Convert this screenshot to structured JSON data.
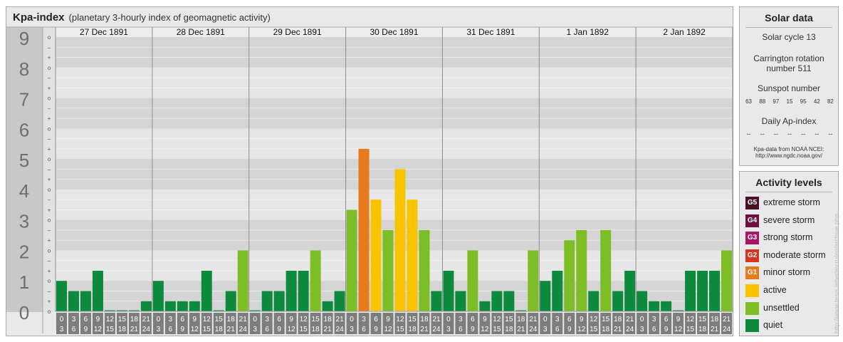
{
  "header": {
    "title": "Kpa-index",
    "subtitle": "(planetary 3-hourly index of geomagnetic activity)"
  },
  "chart_data": {
    "type": "bar",
    "title": "Kpa-index",
    "subtitle": "(planetary 3-hourly index of geomagnetic activity)",
    "ylim": [
      0,
      9
    ],
    "y_ticks": [
      "0",
      "1",
      "2",
      "3",
      "4",
      "5",
      "6",
      "7",
      "8",
      "9"
    ],
    "y_minor_labels": [
      "o",
      "+",
      "–",
      "o"
    ],
    "days": [
      "27 Dec 1891",
      "28 Dec 1891",
      "29 Dec 1891",
      "30 Dec 1891",
      "31 Dec 1891",
      "1 Jan 1892",
      "2 Jan 1892"
    ],
    "interval_start": [
      "0",
      "3",
      "6",
      "9",
      "12",
      "15",
      "18",
      "21"
    ],
    "interval_end": [
      "3",
      "6",
      "9",
      "12",
      "15",
      "18",
      "21",
      "24"
    ],
    "values": [
      [
        1.0,
        0.667,
        0.667,
        1.333,
        0.0,
        0.0,
        0.0,
        0.333
      ],
      [
        1.0,
        0.333,
        0.333,
        0.333,
        1.333,
        0.0,
        0.667,
        2.0
      ],
      [
        0.0,
        0.667,
        0.667,
        1.333,
        1.333,
        2.0,
        0.333,
        0.667
      ],
      [
        3.333,
        5.333,
        3.667,
        2.667,
        4.667,
        3.667,
        2.667,
        0.667
      ],
      [
        1.333,
        0.667,
        2.0,
        0.333,
        0.667,
        0.667,
        0.0,
        2.0
      ],
      [
        1.0,
        1.333,
        2.333,
        2.667,
        0.667,
        2.667,
        0.667,
        1.333
      ],
      [
        0.667,
        0.333,
        0.333,
        0.0,
        1.333,
        1.333,
        1.333,
        2.0
      ]
    ],
    "grid": true,
    "legend_position": "right"
  },
  "solar_data": {
    "title": "Solar data",
    "solar_cycle": "Solar cycle 13",
    "carrington_line1": "Carrington rotation",
    "carrington_line2": "number 511",
    "sunspot_title": "Sunspot number",
    "sunspot_values": [
      "63",
      "88",
      "97",
      "15",
      "95",
      "42",
      "82"
    ],
    "ap_title": "Daily Ap-index",
    "ap_values": [
      "--",
      "--",
      "--",
      "--",
      "--",
      "--",
      "--"
    ],
    "source_line1": "Kpa-data from NOAA NCEI:",
    "source_line2": "http://www.ngdc.noaa.gov/"
  },
  "activity_levels": {
    "title": "Activity levels",
    "items": [
      {
        "code": "G5",
        "label": "extreme storm",
        "color": "#4a0f28"
      },
      {
        "code": "G4",
        "label": "severe storm",
        "color": "#6e1040"
      },
      {
        "code": "G3",
        "label": "strong storm",
        "color": "#a81466"
      },
      {
        "code": "G2",
        "label": "moderate storm",
        "color": "#d6361c"
      },
      {
        "code": "G1",
        "label": "minor storm",
        "color": "#e87a1e"
      },
      {
        "code": "",
        "label": "active",
        "color": "#f8c400"
      },
      {
        "code": "",
        "label": "unsettled",
        "color": "#7dbd26"
      },
      {
        "code": "",
        "label": "quiet",
        "color": "#0e8a3e"
      }
    ]
  },
  "watermark": "http://www.tesis.lebedev.ru/en/archive.php"
}
